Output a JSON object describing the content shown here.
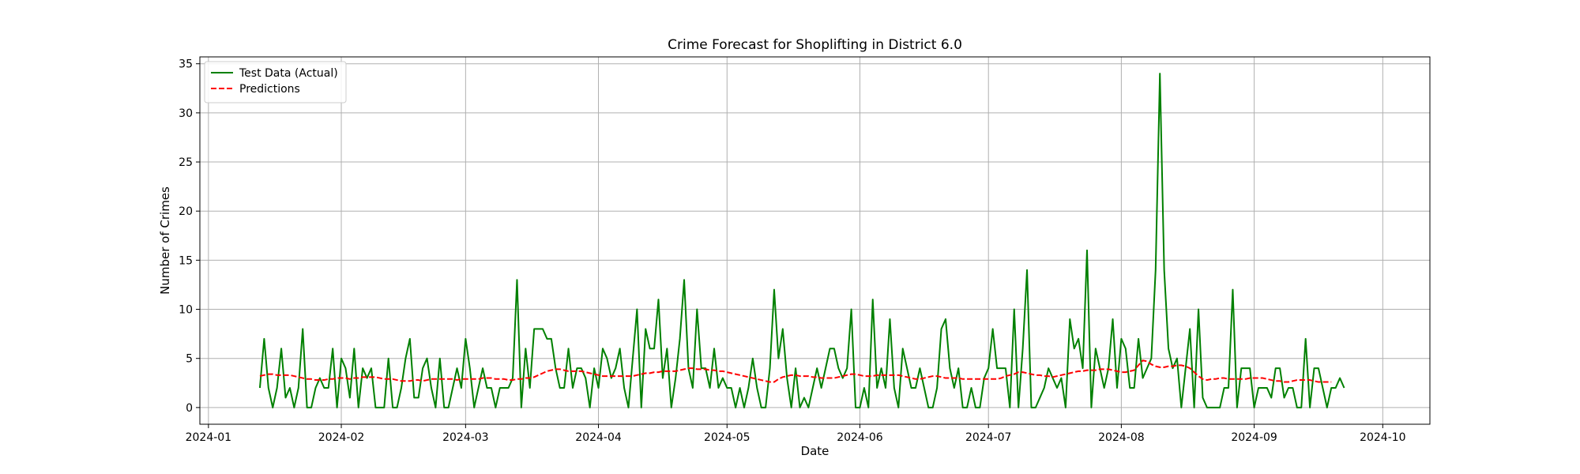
{
  "chart_data": {
    "type": "line",
    "title": "Crime Forecast for Shoplifting in District 6.0",
    "xlabel": "Date",
    "ylabel": "Number of Crimes",
    "xlim": [
      "2023-12-30",
      "2024-10-12"
    ],
    "ylim": [
      -1.7,
      35.7
    ],
    "grid": true,
    "legend_position": "top-left",
    "x_ticks": [
      "2024-01",
      "2024-02",
      "2024-03",
      "2024-04",
      "2024-05",
      "2024-06",
      "2024-07",
      "2024-08",
      "2024-09",
      "2024-10"
    ],
    "x_tick_dates": [
      "2024-01-01",
      "2024-02-01",
      "2024-03-01",
      "2024-04-01",
      "2024-05-01",
      "2024-06-01",
      "2024-07-01",
      "2024-08-01",
      "2024-09-01",
      "2024-10-01"
    ],
    "y_ticks": [
      0,
      5,
      10,
      15,
      20,
      25,
      30,
      35
    ],
    "x_start": "2024-01-13",
    "series": [
      {
        "name": "Test Data (Actual)",
        "color": "#008000",
        "style": "solid",
        "values": [
          2,
          7,
          2,
          0,
          2,
          6,
          1,
          2,
          0,
          2,
          8,
          0,
          0,
          2,
          3,
          2,
          2,
          6,
          0,
          5,
          4,
          1,
          6,
          0,
          4,
          3,
          4,
          0,
          0,
          0,
          5,
          0,
          0,
          2,
          5,
          7,
          1,
          1,
          4,
          5,
          2,
          0,
          5,
          0,
          0,
          2,
          4,
          2,
          7,
          4,
          0,
          2,
          4,
          2,
          2,
          0,
          2,
          2,
          2,
          3,
          13,
          0,
          6,
          2,
          8,
          8,
          8,
          7,
          7,
          4,
          2,
          2,
          6,
          2,
          4,
          4,
          3,
          0,
          4,
          2,
          6,
          5,
          3,
          4,
          6,
          2,
          0,
          5,
          10,
          0,
          8,
          6,
          6,
          11,
          3,
          6,
          0,
          3,
          7,
          13,
          4,
          2,
          10,
          4,
          4,
          2,
          6,
          2,
          3,
          2,
          2,
          0,
          2,
          0,
          2,
          5,
          2,
          0,
          0,
          4,
          12,
          5,
          8,
          3,
          0,
          4,
          0,
          1,
          0,
          2,
          4,
          2,
          4,
          6,
          6,
          4,
          3,
          4,
          10,
          0,
          0,
          2,
          0,
          11,
          2,
          4,
          2,
          9,
          2,
          0,
          6,
          4,
          2,
          2,
          4,
          2,
          0,
          0,
          2,
          8,
          9,
          4,
          2,
          4,
          0,
          0,
          2,
          0,
          0,
          3,
          4,
          8,
          4,
          4,
          4,
          0,
          10,
          0,
          6,
          14,
          0,
          0,
          1,
          2,
          4,
          3,
          2,
          3,
          0,
          9,
          6,
          7,
          4,
          16,
          0,
          6,
          4,
          2,
          4,
          9,
          2,
          7,
          6,
          2,
          2,
          7,
          3,
          4,
          5,
          14,
          34,
          14,
          6,
          4,
          5,
          0,
          4,
          8,
          0,
          10,
          1,
          0,
          0,
          0,
          0,
          2,
          2,
          12,
          0,
          4,
          4,
          4,
          0,
          2,
          2,
          2,
          1,
          4,
          4,
          1,
          2,
          2,
          0,
          0,
          7,
          0,
          4,
          4,
          2,
          0,
          2,
          2,
          3,
          2
        ]
      },
      {
        "name": "Predictions",
        "color": "#ff0000",
        "style": "dashed",
        "values": [
          3.2,
          3.3,
          3.4,
          3.4,
          3.3,
          3.3,
          3.3,
          3.3,
          3.2,
          3.1,
          3.0,
          2.9,
          2.9,
          2.8,
          2.8,
          2.8,
          2.9,
          2.9,
          3.0,
          3.0,
          3.0,
          2.9,
          3.0,
          3.0,
          3.1,
          3.1,
          3.1,
          3.1,
          3.0,
          2.9,
          2.9,
          2.9,
          2.8,
          2.7,
          2.7,
          2.7,
          2.8,
          2.8,
          2.7,
          2.8,
          2.9,
          2.9,
          2.9,
          2.9,
          2.9,
          2.9,
          2.8,
          2.9,
          2.9,
          2.9,
          2.9,
          2.9,
          3.0,
          3.0,
          3.0,
          2.9,
          2.9,
          2.9,
          2.8,
          2.8,
          2.9,
          2.9,
          3.0,
          3.0,
          3.1,
          3.3,
          3.5,
          3.7,
          3.8,
          3.9,
          3.9,
          3.8,
          3.7,
          3.7,
          3.7,
          3.7,
          3.6,
          3.5,
          3.4,
          3.3,
          3.2,
          3.2,
          3.2,
          3.2,
          3.2,
          3.2,
          3.2,
          3.2,
          3.3,
          3.4,
          3.5,
          3.5,
          3.6,
          3.6,
          3.7,
          3.7,
          3.7,
          3.7,
          3.8,
          3.9,
          4.0,
          4.0,
          3.9,
          3.9,
          3.9,
          3.8,
          3.8,
          3.7,
          3.7,
          3.6,
          3.5,
          3.4,
          3.3,
          3.2,
          3.1,
          3.0,
          2.9,
          2.8,
          2.7,
          2.6,
          2.6,
          2.9,
          3.1,
          3.2,
          3.3,
          3.3,
          3.2,
          3.2,
          3.2,
          3.1,
          3.1,
          3.0,
          3.0,
          3.0,
          3.0,
          3.1,
          3.2,
          3.3,
          3.4,
          3.4,
          3.3,
          3.2,
          3.2,
          3.2,
          3.3,
          3.3,
          3.3,
          3.3,
          3.3,
          3.3,
          3.2,
          3.1,
          3.0,
          2.9,
          2.9,
          3.0,
          3.1,
          3.2,
          3.2,
          3.1,
          3.0,
          3.0,
          3.0,
          3.0,
          2.9,
          2.9,
          2.9,
          2.9,
          2.9,
          2.9,
          2.9,
          2.9,
          2.9,
          3.0,
          3.2,
          3.3,
          3.4,
          3.6,
          3.6,
          3.5,
          3.4,
          3.3,
          3.3,
          3.2,
          3.2,
          3.1,
          3.2,
          3.3,
          3.4,
          3.5,
          3.6,
          3.7,
          3.7,
          3.8,
          3.8,
          3.8,
          3.9,
          3.9,
          3.9,
          3.8,
          3.7,
          3.6,
          3.6,
          3.7,
          3.8,
          4.3,
          4.8,
          4.7,
          4.4,
          4.2,
          4.1,
          4.1,
          4.2,
          4.2,
          4.3,
          4.3,
          4.2,
          4.0,
          3.6,
          3.2,
          2.9,
          2.8,
          2.9,
          2.9,
          3.0,
          3.0,
          2.9,
          2.9,
          2.9,
          2.9,
          2.9,
          3.0,
          3.0,
          3.0,
          3.0,
          2.9,
          2.8,
          2.7,
          2.7,
          2.6,
          2.6,
          2.7,
          2.8,
          2.8,
          2.8,
          2.8,
          2.7,
          2.6,
          2.6,
          2.6,
          2.6
        ]
      }
    ]
  }
}
